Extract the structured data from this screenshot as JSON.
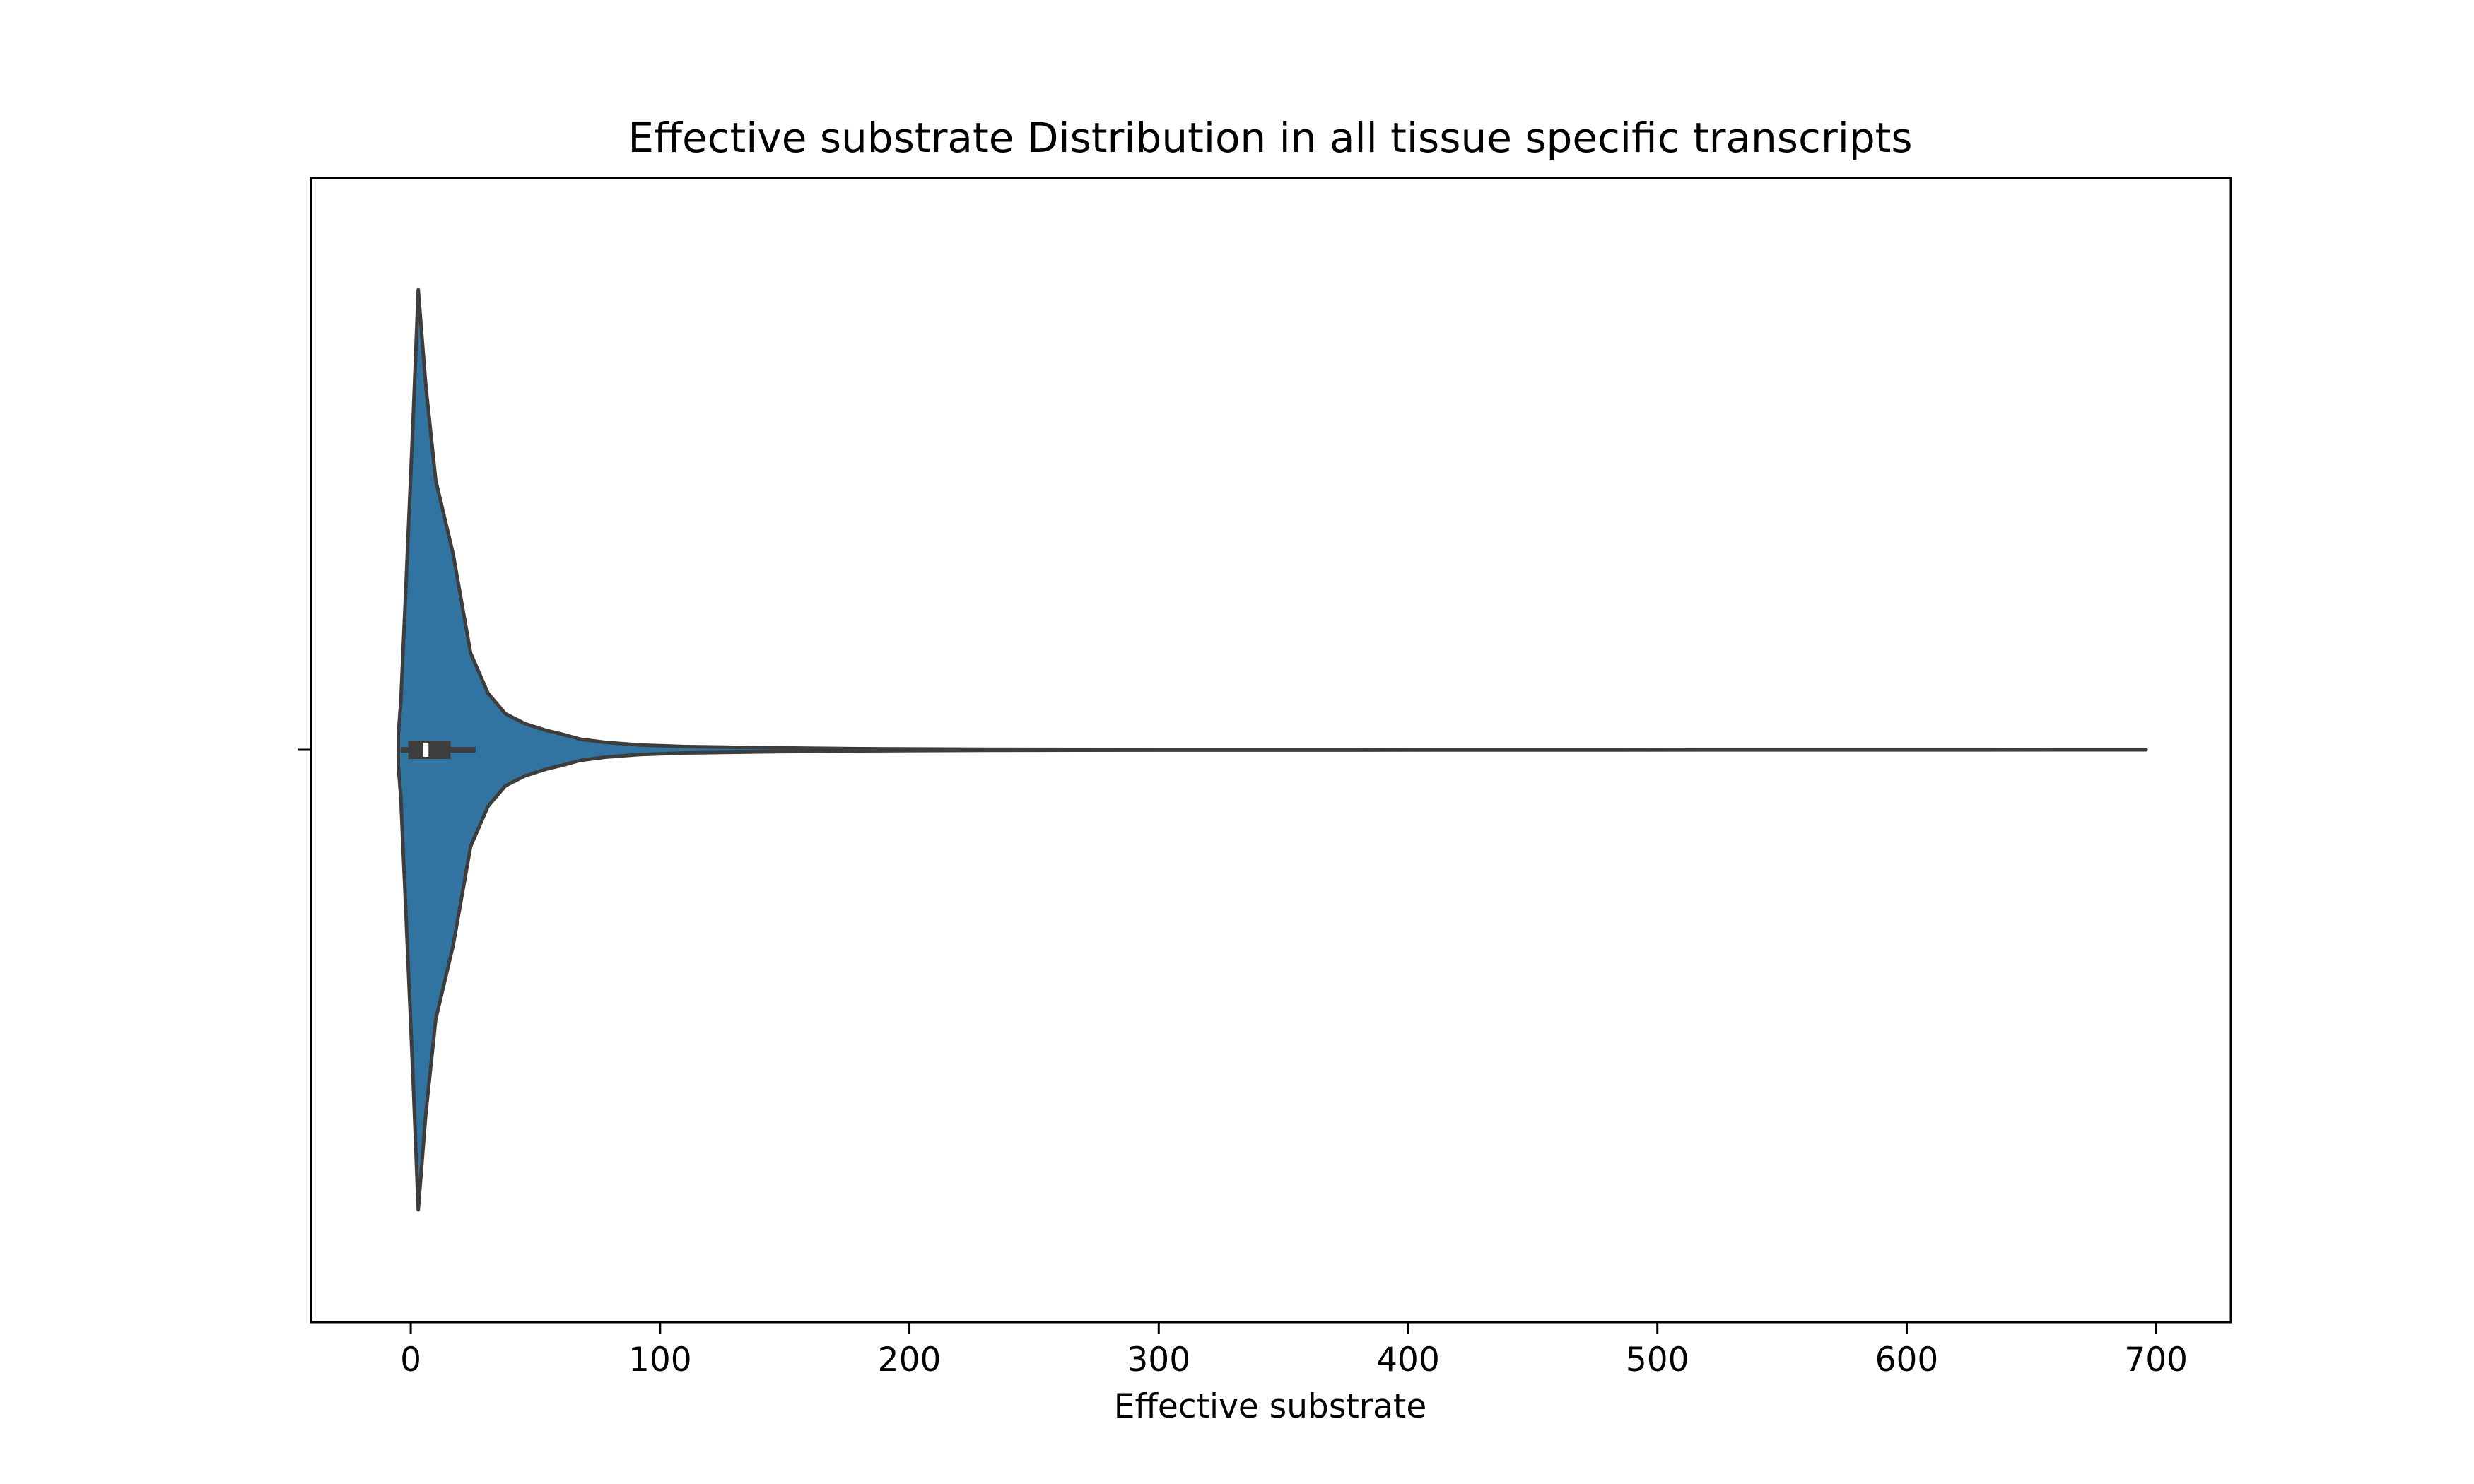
{
  "chart_data": {
    "type": "violin",
    "title": "Effective substrate Distribution in all tissue specific transcripts",
    "xlabel": "Effective substrate",
    "ylabel": "",
    "xlim": [
      -40,
      730
    ],
    "xticks": [
      0,
      100,
      200,
      300,
      400,
      500,
      600,
      700
    ],
    "xtick_labels": [
      "0",
      "100",
      "200",
      "300",
      "400",
      "500",
      "600",
      "700"
    ],
    "grid": false,
    "legend": "none",
    "orientation": "horizontal",
    "colors": {
      "fill": "#3274a1",
      "edge": "#3d3d3d",
      "median": "#ffffff"
    },
    "violin": {
      "density_profile": [
        [
          -5,
          0.0
        ],
        [
          -5,
          0.03
        ],
        [
          -4,
          0.09
        ],
        [
          -2,
          0.3
        ],
        [
          1,
          0.63
        ],
        [
          3,
          0.87
        ],
        [
          6,
          0.69
        ],
        [
          10,
          0.51
        ],
        [
          17,
          0.37
        ],
        [
          24,
          0.183
        ],
        [
          31,
          0.107
        ],
        [
          38,
          0.068
        ],
        [
          46,
          0.049
        ],
        [
          54,
          0.037
        ],
        [
          62,
          0.028
        ],
        [
          68,
          0.02
        ],
        [
          78,
          0.014
        ],
        [
          92,
          0.009
        ],
        [
          110,
          0.006
        ],
        [
          140,
          0.004
        ],
        [
          180,
          0.002
        ],
        [
          230,
          0.001
        ],
        [
          300,
          0.0005
        ],
        [
          696,
          0.0
        ]
      ],
      "box": {
        "q1": -1,
        "median": 6,
        "q3": 16,
        "whisker_low": -4,
        "whisker_high": 26
      }
    }
  }
}
